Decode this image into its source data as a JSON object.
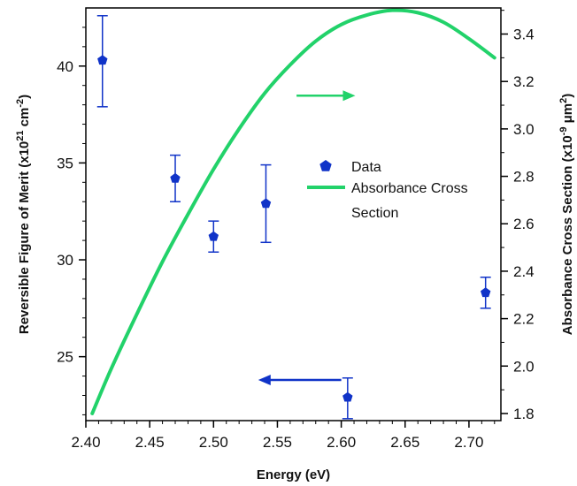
{
  "chart_data": {
    "type": "scatter",
    "title": "",
    "xlabel": "Energy (eV)",
    "ylabel_left": {
      "main": "Reversible Figure of Merit (x10",
      "sup1": "21",
      "mid": " cm",
      "sup2": "-2",
      "end": ")"
    },
    "ylabel_right": {
      "main": "Absorbance Cross Section (x10",
      "sup1": "-9",
      "mid": " μm",
      "sup2": "2",
      "end": ")"
    },
    "xlim": [
      2.4,
      2.725
    ],
    "ylim_left": [
      21.7,
      43.0
    ],
    "ylim_right": [
      1.77,
      3.51
    ],
    "x_ticks": [
      "2.40",
      "2.45",
      "2.50",
      "2.55",
      "2.60",
      "2.65",
      "2.70"
    ],
    "x_tick_values": [
      2.4,
      2.45,
      2.5,
      2.55,
      2.6,
      2.65,
      2.7
    ],
    "y_left_ticks": [
      "25",
      "30",
      "35",
      "40"
    ],
    "y_left_tick_values": [
      25,
      30,
      35,
      40
    ],
    "y_right_ticks": [
      "1.8",
      "2.0",
      "2.2",
      "2.4",
      "2.6",
      "2.8",
      "3.0",
      "3.2",
      "3.4"
    ],
    "y_right_tick_values": [
      1.8,
      2.0,
      2.2,
      2.4,
      2.6,
      2.8,
      3.0,
      3.2,
      3.4
    ],
    "series": [
      {
        "name": "Data",
        "axis": "left",
        "marker": "pentagon",
        "color": "#1033c8",
        "points": [
          {
            "x": 2.413,
            "y": 40.3,
            "err_low": 37.9,
            "err_high": 42.6
          },
          {
            "x": 2.47,
            "y": 34.2,
            "err_low": 33.0,
            "err_high": 35.4
          },
          {
            "x": 2.5,
            "y": 31.2,
            "err_low": 30.4,
            "err_high": 32.0
          },
          {
            "x": 2.541,
            "y": 32.9,
            "err_low": 30.9,
            "err_high": 34.9
          },
          {
            "x": 2.605,
            "y": 22.9,
            "err_low": 21.8,
            "err_high": 23.9
          },
          {
            "x": 2.713,
            "y": 28.3,
            "err_low": 27.5,
            "err_high": 29.1
          }
        ]
      },
      {
        "name": "Absorbance Cross Section",
        "name_lines": [
          "Absorbance Cross",
          "Section"
        ],
        "axis": "right",
        "type": "line",
        "color": "#22d26a",
        "x": [
          2.405,
          2.42,
          2.44,
          2.46,
          2.48,
          2.5,
          2.52,
          2.54,
          2.56,
          2.58,
          2.6,
          2.62,
          2.64,
          2.66,
          2.68,
          2.7,
          2.72
        ],
        "y": [
          1.8,
          1.99,
          2.22,
          2.44,
          2.64,
          2.83,
          3.0,
          3.15,
          3.27,
          3.37,
          3.44,
          3.48,
          3.5,
          3.49,
          3.45,
          3.38,
          3.3
        ]
      }
    ],
    "annotations": [
      {
        "type": "arrow",
        "direction": "right",
        "color": "#22d26a",
        "x_from": 2.565,
        "x_to": 2.611,
        "y_right": 3.14
      },
      {
        "type": "arrow",
        "direction": "left",
        "color": "#1033c8",
        "x_from": 2.6,
        "x_to": 2.535,
        "y_left": 23.8
      }
    ],
    "legend": {
      "placement": "center-right"
    },
    "grid": false
  }
}
